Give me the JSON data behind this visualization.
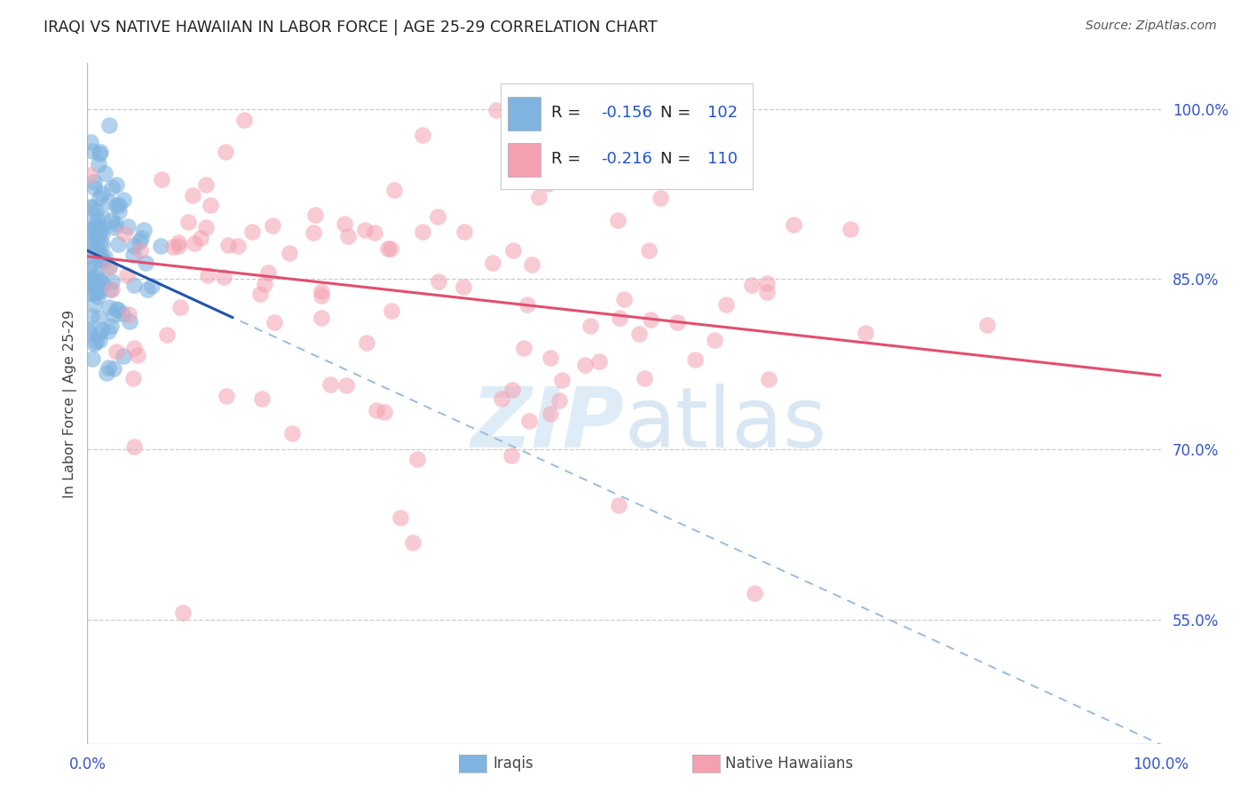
{
  "title": "IRAQI VS NATIVE HAWAIIAN IN LABOR FORCE | AGE 25-29 CORRELATION CHART",
  "source": "Source: ZipAtlas.com",
  "ylabel": "In Labor Force | Age 25-29",
  "xlim": [
    0.0,
    1.0
  ],
  "ylim": [
    0.44,
    1.04
  ],
  "y_ticks_right": [
    0.55,
    0.7,
    0.85,
    1.0
  ],
  "y_tick_labels_right": [
    "55.0%",
    "70.0%",
    "85.0%",
    "100.0%"
  ],
  "iraqis_R": -0.156,
  "iraqis_N": 102,
  "hawaiians_R": -0.216,
  "hawaiians_N": 110,
  "iraqi_color": "#7fb3e0",
  "hawaiian_color": "#f4a0b0",
  "trend_line_iraqi_solid_color": "#2255aa",
  "trend_line_hawaiian_solid_color": "#e05070",
  "trend_line_iraqi_dashed_color": "#99bbdd",
  "background_color": "#ffffff",
  "grid_color": "#cccccc",
  "title_color": "#222222",
  "watermark_zip_color": "#d0e4f5",
  "watermark_atlas_color": "#c0d8ee"
}
